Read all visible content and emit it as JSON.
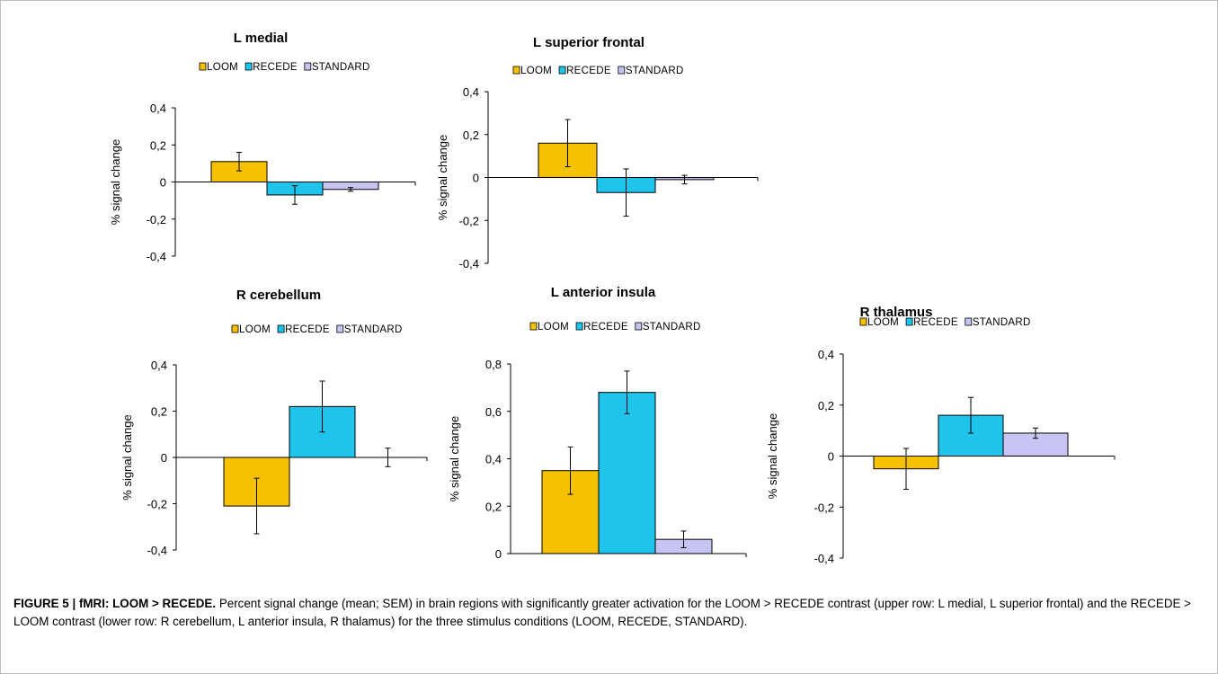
{
  "colors": {
    "LOOM": "#F6C200",
    "RECEDE": "#1EC4EC",
    "STANDARD": "#C7C3F2",
    "axis": "#000000",
    "frame_border": "#bfbfbf"
  },
  "chart_data": [
    {
      "type": "bar",
      "title": "L medial",
      "ylabel": "% signal change",
      "ylim": [
        -0.4,
        0.4
      ],
      "yticks": [
        "0,4",
        "0,2",
        "0",
        "-0,2",
        "-0,4"
      ],
      "ytick_values": [
        0.4,
        0.2,
        0,
        -0.2,
        -0.4
      ],
      "legend": [
        "LOOM",
        "RECEDE",
        "STANDARD"
      ],
      "series": [
        {
          "name": "LOOM",
          "value": 0.11,
          "error": 0.05
        },
        {
          "name": "RECEDE",
          "value": -0.07,
          "error": 0.05
        },
        {
          "name": "STANDARD",
          "value": -0.04,
          "error": 0.01
        }
      ]
    },
    {
      "type": "bar",
      "title": "L superior frontal",
      "ylabel": "% signal change",
      "ylim": [
        -0.4,
        0.4
      ],
      "yticks": [
        "0,4",
        "0,2",
        "0",
        "-0,2",
        "-0,4"
      ],
      "ytick_values": [
        0.4,
        0.2,
        0,
        -0.2,
        -0.4
      ],
      "legend": [
        "LOOM",
        "RECEDE",
        "STANDARD"
      ],
      "series": [
        {
          "name": "LOOM",
          "value": 0.16,
          "error": 0.11
        },
        {
          "name": "RECEDE",
          "value": -0.07,
          "error": 0.11
        },
        {
          "name": "STANDARD",
          "value": -0.01,
          "error": 0.02
        }
      ]
    },
    {
      "type": "bar",
      "title": "R cerebellum",
      "ylabel": "% signal change",
      "ylim": [
        -0.4,
        0.4
      ],
      "yticks": [
        "0,4",
        "0,2",
        "0",
        "-0,2",
        "-0,4"
      ],
      "ytick_values": [
        0.4,
        0.2,
        0,
        -0.2,
        -0.4
      ],
      "legend": [
        "LOOM",
        "RECEDE",
        "STANDARD"
      ],
      "series": [
        {
          "name": "LOOM",
          "value": -0.21,
          "error": 0.12
        },
        {
          "name": "RECEDE",
          "value": 0.22,
          "error": 0.11
        },
        {
          "name": "STANDARD",
          "value": 0.0,
          "error": 0.04
        }
      ]
    },
    {
      "type": "bar",
      "title": "L anterior insula",
      "ylabel": "% signal change",
      "ylim": [
        0,
        0.8
      ],
      "yticks": [
        "0,8",
        "0,6",
        "0,4",
        "0,2",
        "0"
      ],
      "ytick_values": [
        0.8,
        0.6,
        0.4,
        0.2,
        0
      ],
      "legend": [
        "LOOM",
        "RECEDE",
        "STANDARD"
      ],
      "series": [
        {
          "name": "LOOM",
          "value": 0.35,
          "error": 0.1
        },
        {
          "name": "RECEDE",
          "value": 0.68,
          "error": 0.09
        },
        {
          "name": "STANDARD",
          "value": 0.06,
          "error": 0.035
        }
      ]
    },
    {
      "type": "bar",
      "title": "R thalamus",
      "ylabel": "% signal change",
      "ylim": [
        -0.4,
        0.4
      ],
      "yticks": [
        "0,4",
        "0,2",
        "0",
        "-0,2",
        "-0,4"
      ],
      "ytick_values": [
        0.4,
        0.2,
        0,
        -0.2,
        -0.4
      ],
      "legend": [
        "LOOM",
        "RECEDE",
        "STANDARD"
      ],
      "series": [
        {
          "name": "LOOM",
          "value": -0.05,
          "error": 0.08
        },
        {
          "name": "RECEDE",
          "value": 0.16,
          "error": 0.07
        },
        {
          "name": "STANDARD",
          "value": 0.09,
          "error": 0.02
        }
      ]
    }
  ],
  "caption": {
    "label": "FIGURE 5 | fMRI: LOOM > RECEDE.",
    "text": "Percent signal change (mean; SEM) in brain regions with significantly greater activation for the LOOM > RECEDE contrast (upper row: L medial, L superior frontal) and the RECEDE > LOOM contrast (lower row: R cerebellum, L anterior insula, R thalamus) for the three stimulus conditions (LOOM, RECEDE, STANDARD)."
  }
}
